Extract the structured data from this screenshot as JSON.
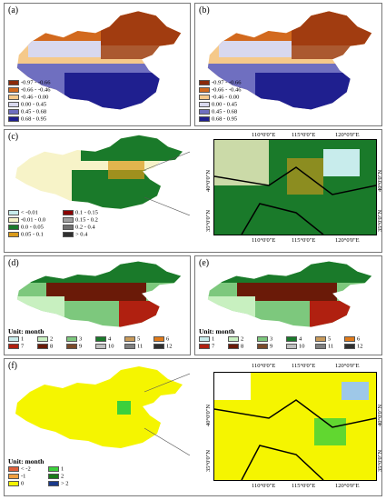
{
  "panels": {
    "a": {
      "label": "(a)"
    },
    "b": {
      "label": "(b)"
    },
    "c": {
      "label": "(c)"
    },
    "d": {
      "label": "(d)"
    },
    "e": {
      "label": "(e)"
    },
    "f": {
      "label": "(f)"
    }
  },
  "legend_ab": [
    {
      "label": "-0.97 - -0.66",
      "color": "#8b2a0a"
    },
    {
      "label": "-0.66 - -0.46",
      "color": "#d2691e"
    },
    {
      "label": "-0.46 - 0.00",
      "color": "#f5c98a"
    },
    {
      "label": "0.00 - 0.45",
      "color": "#d8d8ee"
    },
    {
      "label": "0.45 - 0.68",
      "color": "#6f6fc0"
    },
    {
      "label": "0.68 - 0.95",
      "color": "#1f1f8f"
    }
  ],
  "legend_c": [
    {
      "label": "< -0.01",
      "color": "#c8ecec"
    },
    {
      "label": "0.1 - 0.15",
      "color": "#8b0000"
    },
    {
      "label": "-0.01 - 0.0",
      "color": "#f7f3c8"
    },
    {
      "label": "0.15 - 0.2",
      "color": "#a0a0a0"
    },
    {
      "label": "0.0 - 0.05",
      "color": "#1a7a2a"
    },
    {
      "label": "0.2 - 0.4",
      "color": "#707070"
    },
    {
      "label": "0.05 - 0.1",
      "color": "#d99a1a"
    },
    {
      "label": "> 0.4",
      "color": "#303030"
    }
  ],
  "legend_month": {
    "unit": "Unit: month",
    "items": [
      {
        "label": "1",
        "color": "#c8ecec"
      },
      {
        "label": "2",
        "color": "#c8f0c0"
      },
      {
        "label": "3",
        "color": "#7dc87d"
      },
      {
        "label": "4",
        "color": "#1a7a2a"
      },
      {
        "label": "5",
        "color": "#c89a5a"
      },
      {
        "label": "6",
        "color": "#e07a1a"
      },
      {
        "label": "7",
        "color": "#b02010"
      },
      {
        "label": "8",
        "color": "#6a1a08"
      },
      {
        "label": "9",
        "color": "#7a4a2a"
      },
      {
        "label": "10",
        "color": "#c0c0c0"
      },
      {
        "label": "11",
        "color": "#808080"
      },
      {
        "label": "12",
        "color": "#303030"
      }
    ]
  },
  "legend_f": {
    "unit": "Unit: month",
    "items": [
      {
        "label": "< -2",
        "color": "#e0603a"
      },
      {
        "label": "1",
        "color": "#3cd03c"
      },
      {
        "label": "-1",
        "color": "#f0a040"
      },
      {
        "label": "2",
        "color": "#1a7a1a"
      },
      {
        "label": "0",
        "color": "#f5f500"
      },
      {
        "label": "> 2",
        "color": "#1a3a8a"
      }
    ]
  },
  "inset_c": {
    "top_ticks": [
      "110°0'0\"E",
      "115°0'0\"E",
      "120°0'0\"E"
    ],
    "bottom_ticks": [
      "110°0'0\"E",
      "115°0'0\"E",
      "120°0'0\"E"
    ],
    "left_ticks": [
      "40°0'0\"N",
      "35°0'0\"N"
    ],
    "right_ticks": [
      "40°0'0\"N",
      "35°0'0\"N"
    ]
  },
  "inset_f": {
    "top_ticks": [
      "110°0'0\"E",
      "115°0'0\"E",
      "120°0'0\"E"
    ],
    "bottom_ticks": [
      "110°0'0\"E",
      "115°0'0\"E",
      "120°0'0\"E"
    ],
    "left_ticks": [
      "40°0'0\"N",
      "35°0'0\"N"
    ],
    "right_ticks": [
      "40°0'0\"N",
      "35°0'0\"N"
    ]
  }
}
